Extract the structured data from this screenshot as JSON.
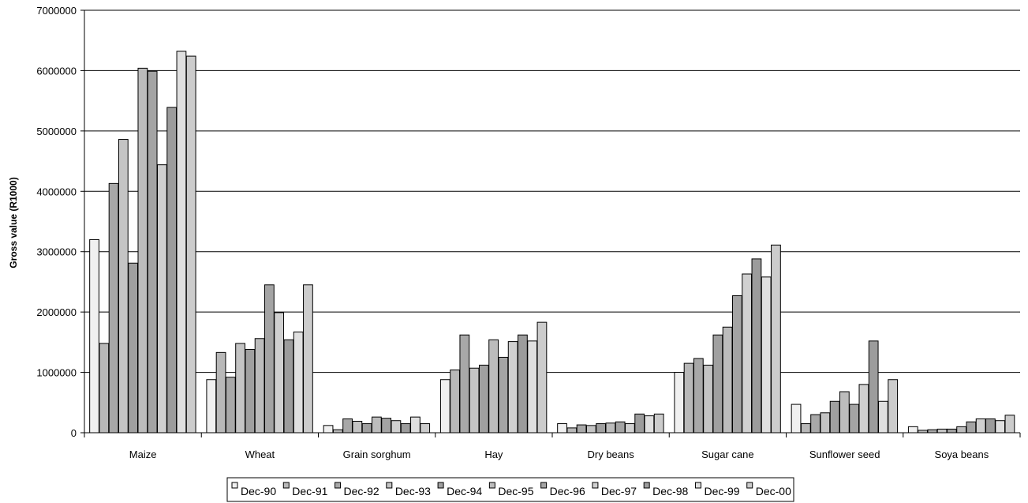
{
  "chart_data": {
    "type": "bar",
    "title": "",
    "xlabel": "",
    "ylabel": "Gross value (R1000)",
    "ylim": [
      0,
      7000000
    ],
    "yticks": [
      0,
      1000000,
      2000000,
      3000000,
      4000000,
      5000000,
      6000000,
      7000000
    ],
    "ytick_labels": [
      "0",
      "1000000",
      "2000000",
      "3000000",
      "4000000",
      "5000000",
      "6000000",
      "7000000"
    ],
    "grid": true,
    "legend_position": "bottom",
    "categories": [
      "Maize",
      "Wheat",
      "Grain sorghum",
      "Hay",
      "Dry beans",
      "Sugar cane",
      "Sunflower seed",
      "Soya beans"
    ],
    "series": [
      {
        "name": "Dec-90",
        "color": "#f0f0f0",
        "values": [
          3200000,
          880000,
          120000,
          880000,
          150000,
          1000000,
          470000,
          100000
        ]
      },
      {
        "name": "Dec-91",
        "color": "#b8b8b8",
        "values": [
          1480000,
          1330000,
          50000,
          1040000,
          80000,
          1150000,
          150000,
          40000
        ]
      },
      {
        "name": "Dec-92",
        "color": "#a8a8a8",
        "values": [
          4130000,
          920000,
          230000,
          1620000,
          130000,
          1230000,
          300000,
          50000
        ]
      },
      {
        "name": "Dec-93",
        "color": "#c4c4c4",
        "values": [
          4860000,
          1480000,
          190000,
          1070000,
          120000,
          1120000,
          330000,
          60000
        ]
      },
      {
        "name": "Dec-94",
        "color": "#a0a0a0",
        "values": [
          2810000,
          1380000,
          150000,
          1120000,
          150000,
          1620000,
          520000,
          60000
        ]
      },
      {
        "name": "Dec-95",
        "color": "#bcbcbc",
        "values": [
          6040000,
          1560000,
          260000,
          1540000,
          160000,
          1750000,
          680000,
          100000
        ]
      },
      {
        "name": "Dec-96",
        "color": "#a4a4a4",
        "values": [
          5990000,
          2450000,
          240000,
          1250000,
          180000,
          2270000,
          470000,
          180000
        ]
      },
      {
        "name": "Dec-97",
        "color": "#d0d0d0",
        "values": [
          4440000,
          1990000,
          200000,
          1510000,
          150000,
          2630000,
          800000,
          230000
        ]
      },
      {
        "name": "Dec-98",
        "color": "#9c9c9c",
        "values": [
          5390000,
          1540000,
          150000,
          1620000,
          310000,
          2880000,
          1520000,
          230000
        ]
      },
      {
        "name": "Dec-99",
        "color": "#e0e0e0",
        "values": [
          6320000,
          1670000,
          260000,
          1520000,
          280000,
          2580000,
          520000,
          200000
        ]
      },
      {
        "name": "Dec-00",
        "color": "#cccccc",
        "values": [
          6240000,
          2450000,
          150000,
          1830000,
          310000,
          3110000,
          880000,
          290000
        ]
      }
    ]
  }
}
